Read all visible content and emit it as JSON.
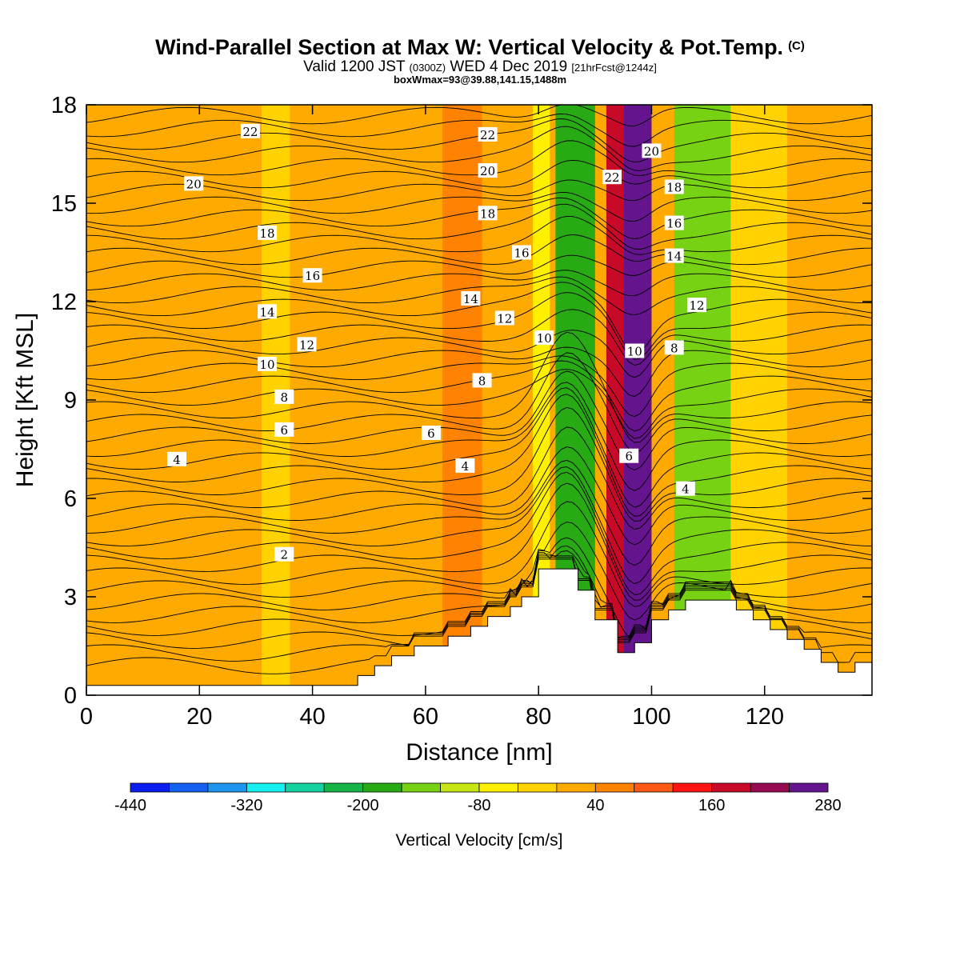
{
  "title": {
    "main": "Wind-Parallel Section at Max W: Vertical Velocity & Pot.Temp.",
    "copyright": "(C)",
    "valid_prefix": "Valid 1200 JST",
    "valid_utc": "(0300Z)",
    "valid_date": "WED 4 Dec 2019",
    "forecast": "[21hrFcst@1244z]",
    "box": "boxWmax=93@39.88,141.15,1488m"
  },
  "chart_data": {
    "type": "heatmap",
    "xlabel": "Distance [nm]",
    "ylabel": "Height [Kft MSL]",
    "xlim": [
      0,
      139
    ],
    "ylim": [
      0,
      18
    ],
    "x_ticks": [
      "0",
      "20",
      "40",
      "60",
      "80",
      "100",
      "120"
    ],
    "y_ticks": [
      "0",
      "3",
      "6",
      "9",
      "12",
      "15",
      "18"
    ],
    "colorbar": {
      "label": "Vertical Velocity [cm/s]",
      "tick_labels": [
        "-440",
        "-320",
        "-200",
        "-80",
        "40",
        "160",
        "280"
      ],
      "bounds": [
        -440,
        280
      ],
      "colors": [
        "#0a1ef0",
        "#1460f0",
        "#1e96f0",
        "#14f0f0",
        "#14d2a0",
        "#14b446",
        "#28aa14",
        "#78d214",
        "#c8e614",
        "#fff000",
        "#ffd200",
        "#ffaa00",
        "#ff8200",
        "#ff5a14",
        "#ff1414",
        "#c80a28",
        "#960a50",
        "#64148c"
      ]
    },
    "velocity_columns": [
      {
        "x": [
          0,
          48
        ],
        "w": 20
      },
      {
        "x": [
          31,
          36
        ],
        "w": -20
      },
      {
        "x": [
          48,
          61
        ],
        "w": 10
      },
      {
        "x": [
          63,
          70
        ],
        "w": 70
      },
      {
        "x": [
          79,
          82
        ],
        "w": -80
      },
      {
        "x": [
          83,
          90
        ],
        "w": -170
      },
      {
        "x": [
          92,
          95
        ],
        "w": 160
      },
      {
        "x": [
          95,
          100
        ],
        "w": 250
      },
      {
        "x": [
          104,
          114
        ],
        "w": -140
      },
      {
        "x": [
          114,
          124
        ],
        "w": -10
      },
      {
        "x": [
          124,
          139
        ],
        "w": 10
      }
    ],
    "terrain": [
      [
        0,
        0.3
      ],
      [
        48,
        0.3
      ],
      [
        48,
        0.6
      ],
      [
        51,
        0.6
      ],
      [
        51,
        0.9
      ],
      [
        54,
        0.9
      ],
      [
        54,
        1.2
      ],
      [
        58,
        1.2
      ],
      [
        58,
        1.5
      ],
      [
        64,
        1.5
      ],
      [
        64,
        1.8
      ],
      [
        68,
        1.8
      ],
      [
        68,
        2.1
      ],
      [
        71,
        2.1
      ],
      [
        71,
        2.4
      ],
      [
        75,
        2.4
      ],
      [
        75,
        2.7
      ],
      [
        77,
        2.7
      ],
      [
        77,
        3.0
      ],
      [
        80,
        3.0
      ],
      [
        80,
        3.85
      ],
      [
        87,
        3.85
      ],
      [
        87,
        3.2
      ],
      [
        90,
        3.2
      ],
      [
        90,
        2.3
      ],
      [
        94,
        2.3
      ],
      [
        94,
        1.3
      ],
      [
        97,
        1.3
      ],
      [
        97,
        1.6
      ],
      [
        100,
        1.6
      ],
      [
        100,
        2.3
      ],
      [
        103,
        2.3
      ],
      [
        103,
        2.6
      ],
      [
        106,
        2.6
      ],
      [
        106,
        2.9
      ],
      [
        112,
        2.9
      ],
      [
        112,
        2.9
      ],
      [
        115,
        2.9
      ],
      [
        115,
        2.6
      ],
      [
        118,
        2.6
      ],
      [
        118,
        2.3
      ],
      [
        121,
        2.3
      ],
      [
        121,
        2.0
      ],
      [
        124,
        2.0
      ],
      [
        124,
        1.7
      ],
      [
        127,
        1.7
      ],
      [
        127,
        1.4
      ],
      [
        130,
        1.4
      ],
      [
        130,
        1.0
      ],
      [
        133,
        1.0
      ],
      [
        133,
        0.7
      ],
      [
        136,
        0.7
      ],
      [
        136,
        1.0
      ],
      [
        139,
        1.0
      ]
    ],
    "theta_labels": [
      {
        "text": "22",
        "x": 29,
        "y": 17.2
      },
      {
        "text": "20",
        "x": 19,
        "y": 15.6
      },
      {
        "text": "18",
        "x": 32,
        "y": 14.1
      },
      {
        "text": "16",
        "x": 40,
        "y": 12.8
      },
      {
        "text": "14",
        "x": 32,
        "y": 11.7
      },
      {
        "text": "12",
        "x": 39,
        "y": 10.7
      },
      {
        "text": "10",
        "x": 32,
        "y": 10.1
      },
      {
        "text": "8",
        "x": 35,
        "y": 9.1
      },
      {
        "text": "6",
        "x": 35,
        "y": 8.1
      },
      {
        "text": "4",
        "x": 16,
        "y": 7.2
      },
      {
        "text": "2",
        "x": 35,
        "y": 4.3
      },
      {
        "text": "22",
        "x": 71,
        "y": 17.1
      },
      {
        "text": "20",
        "x": 71,
        "y": 16.0
      },
      {
        "text": "18",
        "x": 71,
        "y": 14.7
      },
      {
        "text": "16",
        "x": 77,
        "y": 13.5
      },
      {
        "text": "14",
        "x": 68,
        "y": 12.1
      },
      {
        "text": "12",
        "x": 74,
        "y": 11.5
      },
      {
        "text": "10",
        "x": 81,
        "y": 10.9
      },
      {
        "text": "8",
        "x": 70,
        "y": 9.6
      },
      {
        "text": "6",
        "x": 61,
        "y": 8.0
      },
      {
        "text": "4",
        "x": 67,
        "y": 7.0
      },
      {
        "text": "22",
        "x": 93,
        "y": 15.8
      },
      {
        "text": "20",
        "x": 100,
        "y": 16.6
      },
      {
        "text": "18",
        "x": 104,
        "y": 15.5
      },
      {
        "text": "16",
        "x": 104,
        "y": 14.4
      },
      {
        "text": "14",
        "x": 104,
        "y": 13.4
      },
      {
        "text": "12",
        "x": 108,
        "y": 11.9
      },
      {
        "text": "10",
        "x": 97,
        "y": 10.5
      },
      {
        "text": "8",
        "x": 104,
        "y": 10.6
      },
      {
        "text": "6",
        "x": 96,
        "y": 7.3
      },
      {
        "text": "4",
        "x": 106,
        "y": 6.3
      }
    ]
  }
}
